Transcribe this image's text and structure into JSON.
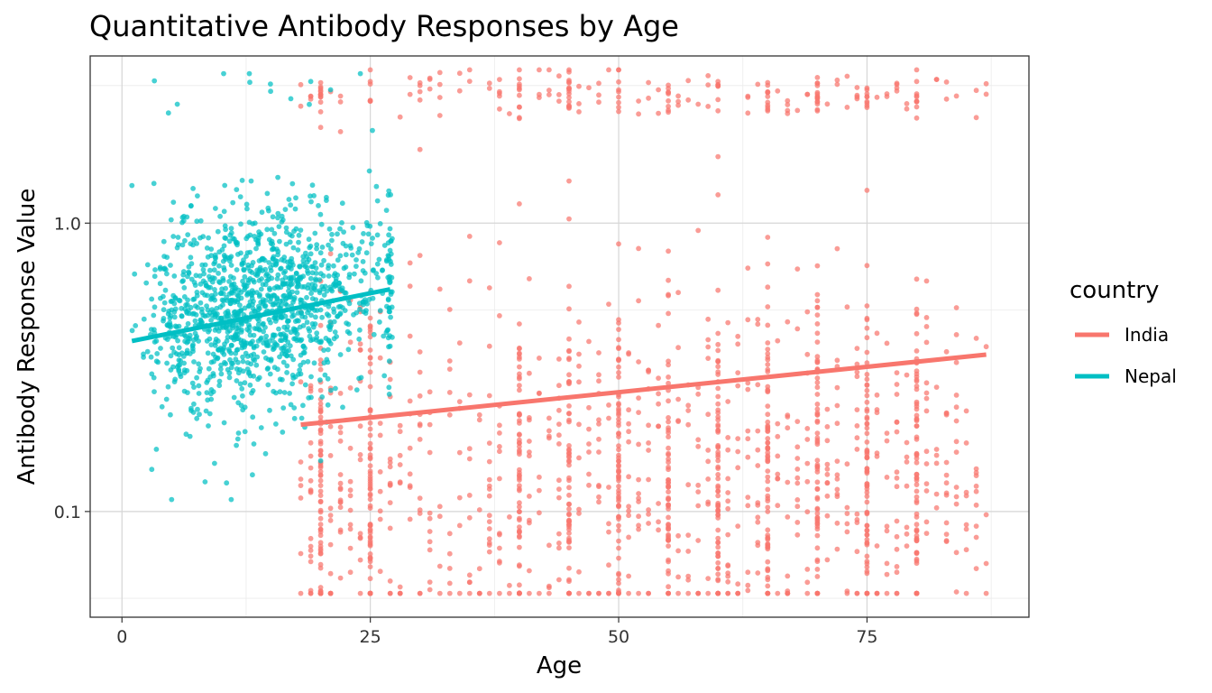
{
  "chart_data": {
    "type": "scatter",
    "title": "Quantitative Antibody Responses by Age",
    "xlabel": "Age",
    "ylabel": "Antibody Response Value",
    "xlim": [
      -3.2,
      91.3
    ],
    "ylim": [
      0.043,
      3.8
    ],
    "y_scale": "log10",
    "x_ticks": [
      0,
      25,
      50,
      75
    ],
    "y_ticks": [
      0.1,
      1.0
    ],
    "y_tick_labels": [
      "0.1",
      "1.0"
    ],
    "grid": true,
    "legend": {
      "title": "country",
      "position": "right"
    },
    "series": [
      {
        "name": "India",
        "color": "#F8766D",
        "x_range": [
          18,
          87
        ],
        "y_range": [
          0.052,
          3.4
        ],
        "trend": {
          "x": [
            18,
            87
          ],
          "y": [
            0.2,
            0.35
          ]
        },
        "sample_points": [
          [
            25,
            3.1
          ],
          [
            40,
            2.9
          ],
          [
            50,
            3.4
          ],
          [
            60,
            3.1
          ],
          [
            70,
            3.0
          ],
          [
            80,
            3.1
          ],
          [
            87,
            2.8
          ],
          [
            30,
            1.8
          ],
          [
            45,
            1.4
          ],
          [
            60,
            1.7
          ],
          [
            75,
            1.3
          ],
          [
            35,
            0.9
          ],
          [
            55,
            0.8
          ],
          [
            65,
            0.6
          ],
          [
            81,
            0.63
          ],
          [
            40,
            0.3
          ],
          [
            50,
            0.25
          ],
          [
            60,
            0.22
          ],
          [
            70,
            0.18
          ],
          [
            40,
            0.1
          ],
          [
            45,
            0.09
          ],
          [
            60,
            0.1
          ],
          [
            65,
            0.08
          ],
          [
            19,
            0.067
          ],
          [
            44,
            0.058
          ],
          [
            51,
            0.052
          ],
          [
            67,
            0.053
          ],
          [
            87,
            0.066
          ]
        ]
      },
      {
        "name": "Nepal",
        "color": "#00BFC4",
        "x_range": [
          1,
          27
        ],
        "y_range": [
          0.11,
          3.3
        ],
        "trend": {
          "x": [
            1,
            27
          ],
          "y": [
            0.39,
            0.59
          ]
        },
        "sample_points": [
          [
            1,
            1.35
          ],
          [
            13,
            1.4
          ],
          [
            17,
            2.7
          ],
          [
            19,
            3.1
          ],
          [
            21,
            2.9
          ],
          [
            24,
            3.3
          ],
          [
            5,
            0.5
          ],
          [
            8,
            0.45
          ],
          [
            12,
            0.5
          ],
          [
            15,
            0.55
          ],
          [
            20,
            0.5
          ],
          [
            3,
            0.3
          ],
          [
            10,
            0.3
          ],
          [
            18,
            0.3
          ],
          [
            22,
            0.35
          ],
          [
            5,
            0.11
          ],
          [
            11,
            0.11
          ],
          [
            3,
            0.14
          ],
          [
            20,
            0.15
          ]
        ]
      }
    ]
  }
}
